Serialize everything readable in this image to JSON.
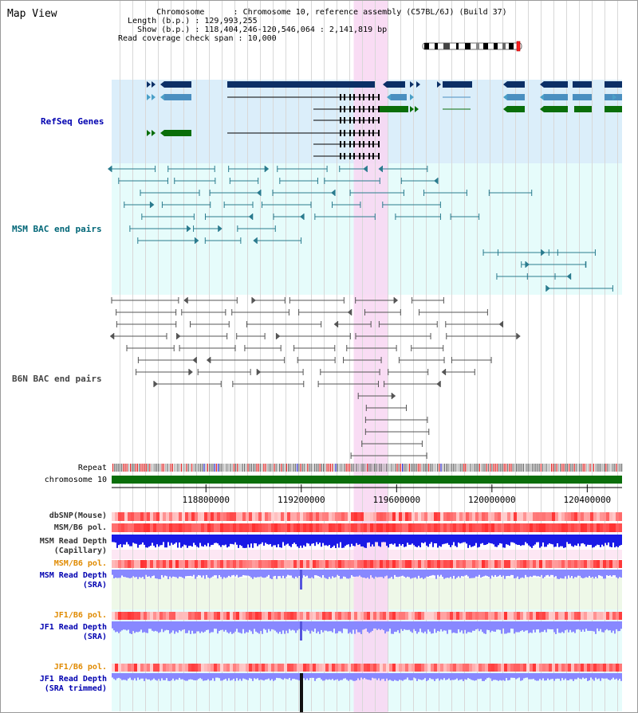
{
  "view_title": "Map View",
  "info": {
    "chromosome_label": "Chromosome",
    "chromosome_value": "Chromosome 10, reference assembly (C57BL/6J) (Build 37)",
    "length_label": "Length (b.p.)",
    "length_value": "129,993,255",
    "show_label": "Show (b.p.)",
    "show_value": "118,404,246-120,546,064 : 2,141,819 bp",
    "coverage_label": "Read coverage check span",
    "coverage_value": "10,000"
  },
  "tracks": {
    "refseq": "RefSeq Genes",
    "msm_bac": "MSM BAC end pairs",
    "b6n_bac": "B6N BAC end pairs",
    "repeat": "Repeat",
    "chromosome": "chromosome 10",
    "dbsnp": "dbSNP(Mouse)",
    "msm_b6_pol": "MSM/B6 pol.",
    "msm_depth_cap_1": "MSM Read Depth",
    "msm_depth_cap_2": "(Capillary)",
    "msm_b6_pol_2": "MSM/B6 pol.",
    "msm_depth_sra_1": "MSM Read Depth",
    "msm_depth_sra_2": "(SRA)",
    "jf1_b6_pol": "JF1/B6 pol.",
    "jf1_depth_sra_1": "JF1 Read Depth",
    "jf1_depth_sra_2": "(SRA)",
    "jf1_b6_pol_2": "JF1/B6 pol.",
    "jf1_depth_trim_1": "JF1 Read Depth",
    "jf1_depth_trim_2": "(SRA trimmed)"
  },
  "axis_ticks": [
    "118800000",
    "119200000",
    "119600000",
    "120000000",
    "120400000"
  ],
  "axis_tick_values": [
    118800000,
    119200000,
    119600000,
    120000000,
    120400000
  ],
  "axis_range": [
    118404246,
    120546064
  ],
  "highlight_range": [
    119420000,
    119565000
  ],
  "colors": {
    "highlight": "#f8d6f2",
    "refseq_bg": "#dbeefa",
    "msm_bg": "#e6fcfb",
    "gene_dark": "#0b2f66",
    "gene_mid": "#4a8fc0",
    "gene_green": "#0a6e0a",
    "msm_pair": "#2a7b8e",
    "b6n_pair": "#555555",
    "chromosome": "#0a6e0a",
    "snp_red": "#ff4040",
    "depth_blue": "#1a1ae6",
    "depth_light": "#8888ff",
    "label_blue": "#0000b0",
    "label_orange": "#e08a00",
    "label_teal": "#006677"
  }
}
